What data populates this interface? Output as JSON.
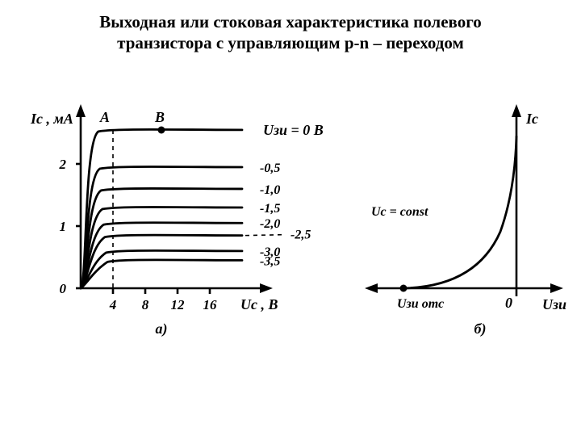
{
  "title_line1": "Выходная или стоковая характеристика полевого",
  "title_line2": "транзистора с управляющим p-n – переходом",
  "title_fontsize": 21,
  "colors": {
    "bg": "#ffffff",
    "ink": "#000000"
  },
  "chart_a": {
    "type": "line",
    "caption": "а)",
    "y_axis_label": "Iс , мА",
    "x_axis_label": "Uс , В",
    "point_A": "А",
    "point_B": "В",
    "curve_param_label": "Uзи = 0 В",
    "xlim": [
      0,
      20
    ],
    "ylim": [
      0,
      2.6
    ],
    "x_ticks": [
      4,
      8,
      12,
      16
    ],
    "y_ticks": [
      0,
      1,
      2
    ],
    "dashed_x": 4,
    "series": [
      {
        "label": "Uзи = 0 В",
        "short": "0",
        "plateau": 2.55
      },
      {
        "label": "-0,5",
        "short": "-0,5",
        "plateau": 1.95
      },
      {
        "label": "-1,0",
        "short": "-1,0",
        "plateau": 1.6
      },
      {
        "label": "-1,5",
        "short": "-1,5",
        "plateau": 1.3
      },
      {
        "label": "-2,0",
        "short": "-2,0",
        "plateau": 1.05
      },
      {
        "label": "-2,5",
        "short": "-2,5",
        "plateau": 0.85
      },
      {
        "label": "-3,0",
        "short": "-3,0",
        "plateau": 0.6
      },
      {
        "label": "-3,5",
        "short": "-3,5",
        "plateau": 0.45
      }
    ],
    "stroke_width": 2.8,
    "axis_width": 2.6
  },
  "chart_b": {
    "type": "line",
    "caption": "б)",
    "y_axis_label": "Iс",
    "x_axis_label": "Uзи",
    "const_label": "Uс = const",
    "x_intercept_label": "Uзи отс",
    "zero_label": "0",
    "stroke_width": 2.8,
    "axis_width": 2.6
  }
}
